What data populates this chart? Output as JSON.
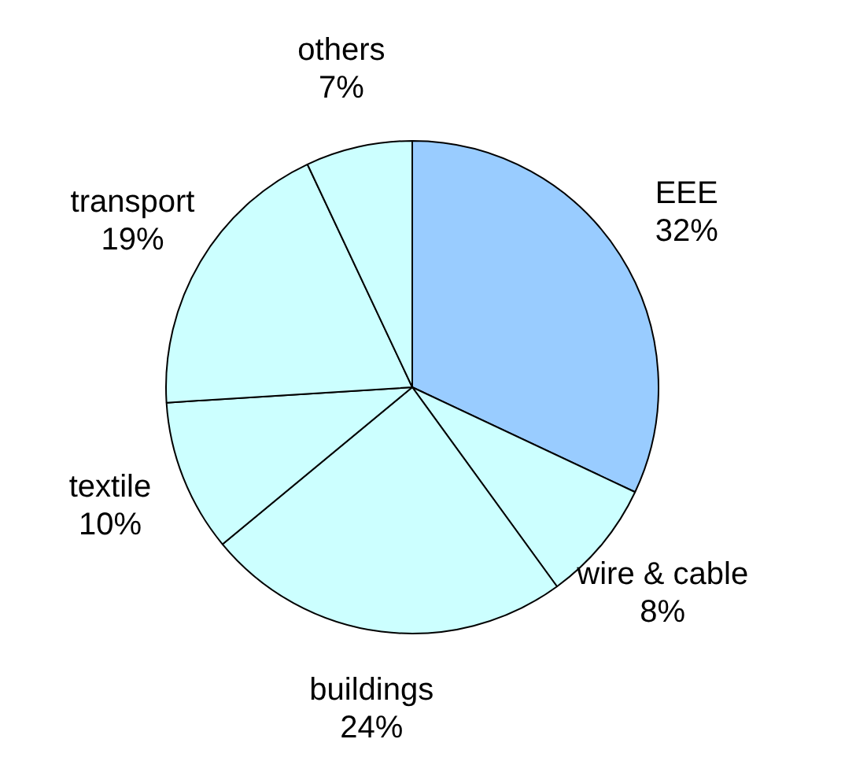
{
  "chart_data": {
    "type": "pie",
    "categories": [
      "EEE",
      "wire & cable",
      "buildings",
      "textile",
      "transport",
      "others"
    ],
    "values": [
      32,
      8,
      24,
      10,
      19,
      7
    ],
    "colors": [
      "#99ccff",
      "#ccffff",
      "#ccffff",
      "#ccffff",
      "#ccffff",
      "#ccffff"
    ],
    "value_labels": [
      "32%",
      "8%",
      "24%",
      "10%",
      "19%",
      "7%"
    ],
    "legend": false
  }
}
